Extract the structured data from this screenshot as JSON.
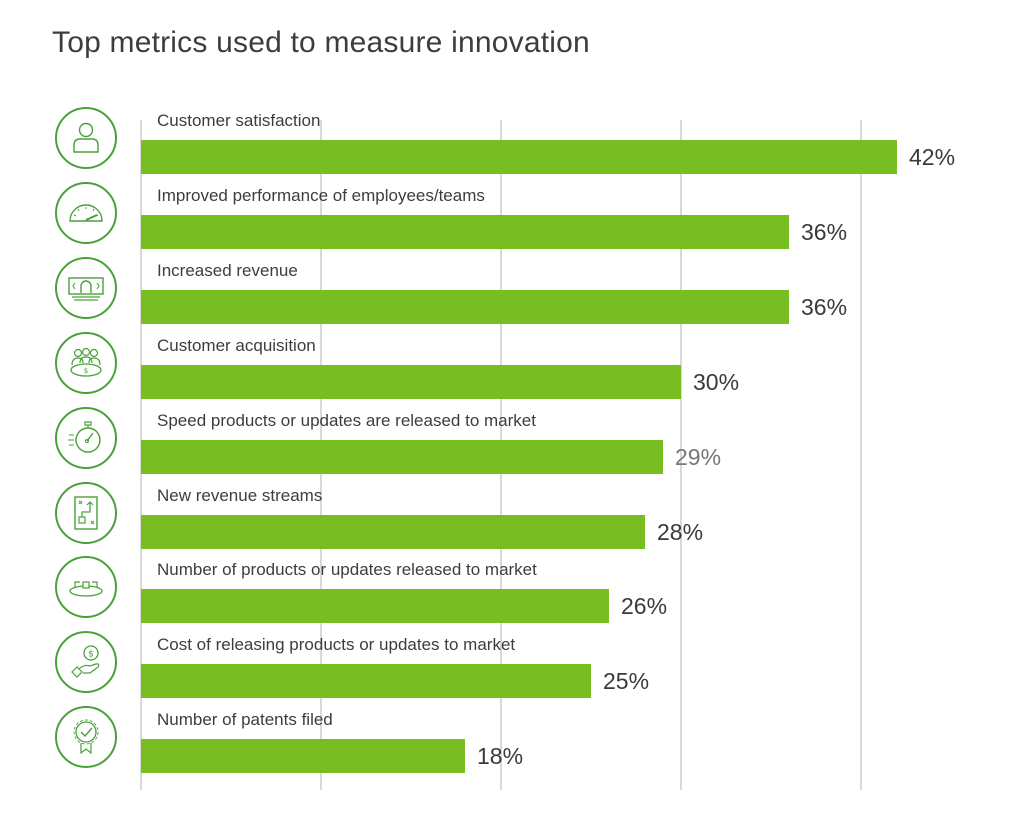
{
  "chart_data": {
    "type": "bar",
    "orientation": "horizontal",
    "title": "Top metrics used to measure innovation",
    "xlabel": "",
    "ylabel": "",
    "xlim": [
      0,
      45
    ],
    "grid": true,
    "grid_values": [
      0,
      10,
      20,
      30,
      40
    ],
    "unit": "%",
    "bar_color": "#78bd22",
    "icon_color": "#4aa03a",
    "categories": [
      "Customer satisfaction",
      "Improved performance of employees/teams",
      "Increased revenue",
      "Customer acquisition",
      "Speed products or updates are released to market",
      "New revenue streams",
      "Number of products or updates released to market",
      "Cost of releasing products or updates to market",
      "Number of patents filed"
    ],
    "values": [
      42,
      36,
      36,
      30,
      29,
      28,
      26,
      25,
      18
    ],
    "value_labels": [
      "42%",
      "36%",
      "36%",
      "30%",
      "29%",
      "28%",
      "26%",
      "25%",
      "18%"
    ],
    "icons": [
      "person-icon",
      "speedometer-icon",
      "banknote-icon",
      "meeting-table-icon",
      "stopwatch-icon",
      "strategy-map-icon",
      "workflow-icon",
      "hand-coin-icon",
      "award-badge-icon"
    ],
    "muted_label_index": 4
  }
}
